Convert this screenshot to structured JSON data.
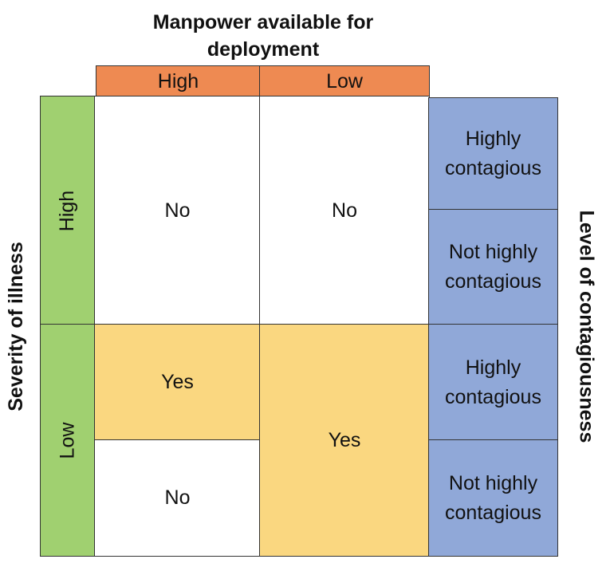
{
  "column_axis": {
    "title": "Manpower available for\ndeployment",
    "headers": [
      "High",
      "Low"
    ]
  },
  "row_axis": {
    "title": "Severity of illness",
    "headers": [
      "High",
      "Low"
    ]
  },
  "right_axis": {
    "title": "Level of contagiousness",
    "labels": [
      "Highly\ncontagious",
      "Not highly\ncontagious",
      "Highly\ncontagious",
      "Not highly\ncontagious"
    ]
  },
  "cells": {
    "high_severity_high_manpower": "No",
    "high_severity_low_manpower": "No",
    "low_severity_high_manpower_highly_contagious": "Yes",
    "low_severity_high_manpower_not_highly_contagious": "No",
    "low_severity_low_manpower": "Yes"
  },
  "colors": {
    "column_header": "#ee8a52",
    "row_header": "#a0d070",
    "right_labels": "#90a8d8",
    "yes_cell": "#fad780",
    "no_cell": "#ffffff"
  }
}
